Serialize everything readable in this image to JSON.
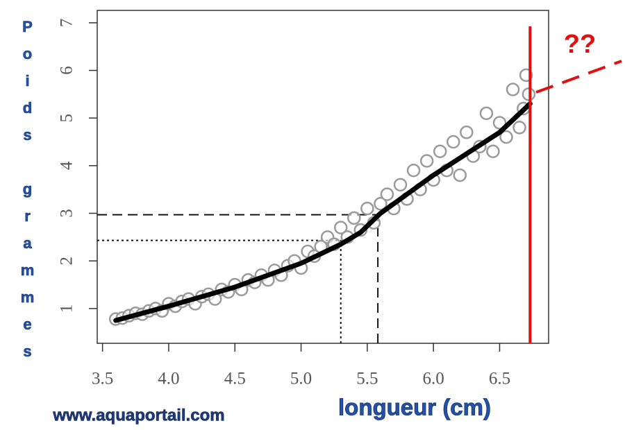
{
  "chart_data": {
    "type": "scatter",
    "y_label": "Poids grammes",
    "x_label": "longueur (cm)",
    "watermark": "www.aquaportail.com",
    "annotation": "??",
    "xlim": [
      3.46,
      6.87
    ],
    "ylim": [
      0.27,
      7.26
    ],
    "xticks": [
      3.5,
      {
        "value": 4,
        "label": "4.0"
      },
      4.5,
      {
        "value": 5,
        "label": "5.0"
      },
      5.5,
      {
        "value": 6,
        "label": "6.0"
      },
      6.5
    ],
    "yticks": [
      1,
      2,
      3,
      4,
      5,
      6,
      7
    ],
    "color": "#9a9a9a",
    "x": [
      3.6,
      3.65,
      3.7,
      3.75,
      3.8,
      3.85,
      3.9,
      3.95,
      4.0,
      4.05,
      4.1,
      4.15,
      4.2,
      4.25,
      4.3,
      4.35,
      4.4,
      4.45,
      4.5,
      4.55,
      4.6,
      4.65,
      4.7,
      4.75,
      4.8,
      4.85,
      4.9,
      4.95,
      5.0,
      5.05,
      5.1,
      5.15,
      5.2,
      5.25,
      5.3,
      5.35,
      5.4,
      5.45,
      5.5,
      5.55,
      5.6,
      5.65,
      5.7,
      5.75,
      5.8,
      5.85,
      5.9,
      5.95,
      6.0,
      6.05,
      6.1,
      6.15,
      6.2,
      6.25,
      6.3,
      6.35,
      6.4,
      6.45,
      6.5,
      6.55,
      6.6,
      6.65,
      6.7,
      6.72,
      6.68
    ],
    "values": [
      0.78,
      0.8,
      0.85,
      0.9,
      0.88,
      0.95,
      1.0,
      0.95,
      1.1,
      1.05,
      1.15,
      1.2,
      1.1,
      1.25,
      1.3,
      1.2,
      1.4,
      1.35,
      1.5,
      1.4,
      1.6,
      1.55,
      1.7,
      1.6,
      1.8,
      1.7,
      1.9,
      2.0,
      1.85,
      2.2,
      2.1,
      2.3,
      2.5,
      2.35,
      2.7,
      2.5,
      2.9,
      2.65,
      3.1,
      2.8,
      3.2,
      3.4,
      3.1,
      3.6,
      3.3,
      3.9,
      3.5,
      4.1,
      3.7,
      4.3,
      3.9,
      4.5,
      3.8,
      4.7,
      4.2,
      4.4,
      5.1,
      4.3,
      4.9,
      4.6,
      5.6,
      4.8,
      5.9,
      5.5,
      5.2
    ],
    "fit": {
      "color": "#000000",
      "x": [
        3.6,
        4.0,
        4.5,
        5.0,
        5.3,
        5.45,
        5.6,
        6.0,
        6.5,
        6.73
      ],
      "values": [
        0.75,
        1.05,
        1.45,
        1.95,
        2.35,
        2.6,
        3.0,
        3.8,
        4.7,
        5.3
      ]
    },
    "guides": [
      {
        "x": 5.58,
        "y": 2.97,
        "style": "dashed"
      },
      {
        "x": 5.3,
        "y": 2.43,
        "style": "dotted"
      }
    ],
    "limit_x": 6.73,
    "limit_color": "#e01010"
  }
}
